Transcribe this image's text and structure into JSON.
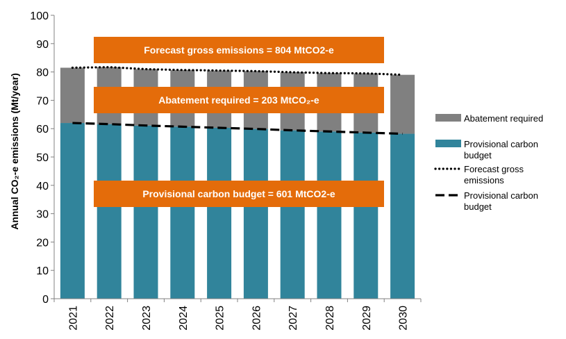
{
  "chart_data": {
    "type": "bar",
    "stacked": true,
    "categories": [
      "2021",
      "2022",
      "2023",
      "2024",
      "2025",
      "2026",
      "2027",
      "2028",
      "2029",
      "2030"
    ],
    "series": [
      {
        "name": "Provisional carbon budget",
        "kind": "bar",
        "color": "#31849B",
        "values": [
          62.0,
          61.6,
          61.1,
          60.7,
          60.3,
          59.9,
          59.4,
          59.0,
          58.6,
          58.2
        ]
      },
      {
        "name": "Abatement required",
        "kind": "bar",
        "color": "#808080",
        "values": [
          19.5,
          20.1,
          19.9,
          20.0,
          20.2,
          20.4,
          20.5,
          20.6,
          20.9,
          20.8
        ]
      },
      {
        "name": "Forecast gross emissions",
        "kind": "line",
        "style": "dotted",
        "color": "#000000",
        "values": [
          81.5,
          81.7,
          81.0,
          80.7,
          80.5,
          80.3,
          79.9,
          79.6,
          79.5,
          79.0
        ]
      },
      {
        "name": "Provisional carbon budget",
        "kind": "line",
        "style": "dashed",
        "color": "#000000",
        "values": [
          62.0,
          61.6,
          61.1,
          60.7,
          60.3,
          59.9,
          59.4,
          59.0,
          58.6,
          58.2
        ]
      }
    ],
    "ylabel": "Annual CO₂-e emissions (Mt/year)",
    "xlabel": "",
    "ylim": [
      0,
      100
    ],
    "yticks": [
      "0",
      "10",
      "20",
      "30",
      "40",
      "50",
      "60",
      "70",
      "80",
      "90",
      "100"
    ],
    "grid": false,
    "legend": "right",
    "annotations": [
      {
        "text": "Forecast gross emissions = 804 MtCO2-e",
        "color": "#E46C0A"
      },
      {
        "text": "Abatement required = 203 MtCO₂-e",
        "color": "#E46C0A"
      },
      {
        "text": "Provisional carbon budget = 601 MtCO2-e",
        "color": "#E46C0A"
      }
    ]
  },
  "legend": {
    "items": [
      {
        "label": "Abatement required",
        "marker": "box",
        "color": "#808080"
      },
      {
        "label": "Provisional carbon budget",
        "marker": "box",
        "color": "#31849B"
      },
      {
        "label": "Forecast gross emissions",
        "marker": "dotted",
        "color": "#000000"
      },
      {
        "label": "Provisional carbon budget",
        "marker": "dashed",
        "color": "#000000"
      }
    ]
  }
}
